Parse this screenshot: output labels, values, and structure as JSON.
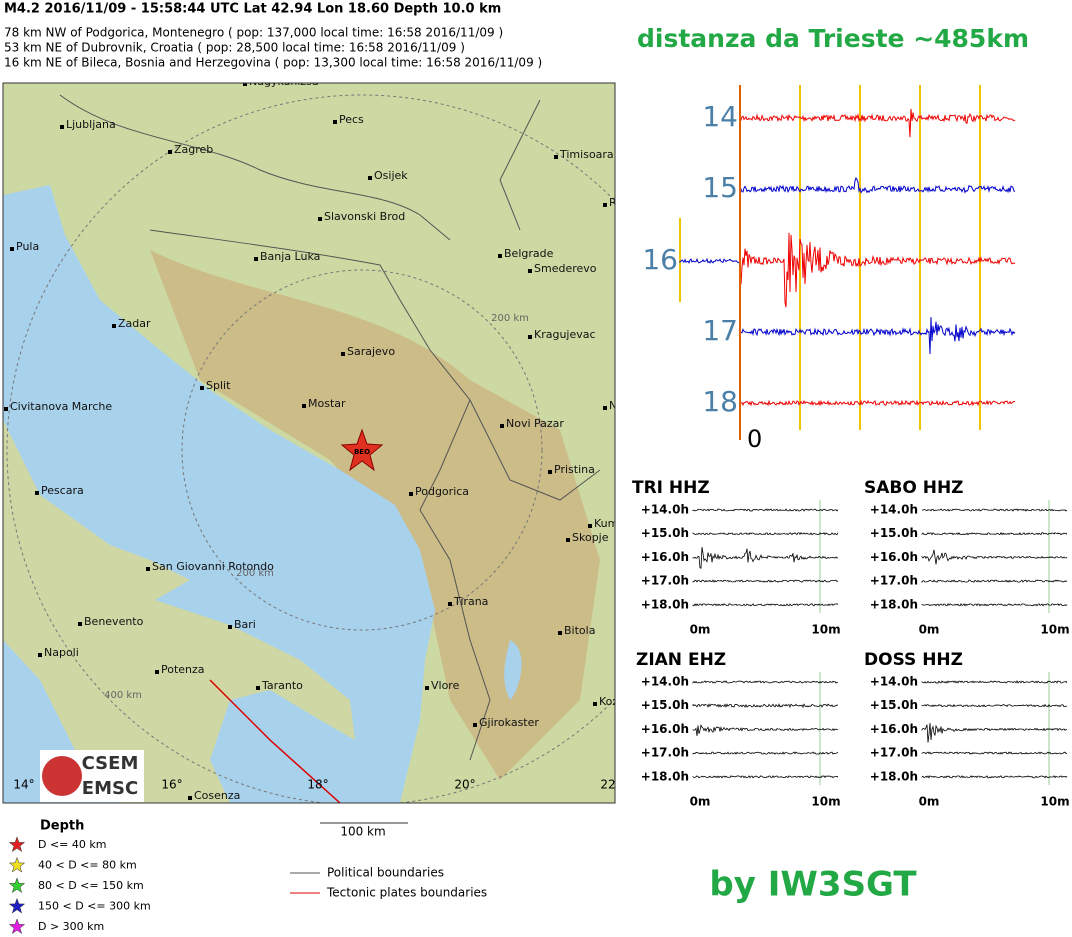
{
  "header": {
    "title": "M4.2  2016/11/09 - 15:58:44 UTC   Lat 42.94  Lon 18.60   Depth  10.0 km",
    "lines": [
      "78 km NW of Podgorica, Montenegro  (  pop: 137,000   local time: 16:58 2016/11/09 )",
      "53 km NE of Dubrovnik, Croatia  (  pop: 28,500   local time: 16:58 2016/11/09 )",
      "16 km NE of Bileca, Bosnia and Herzegovina  (  pop: 13,300   local time: 16:58 2016/11/09 )"
    ]
  },
  "map": {
    "cities": [
      "Nagykanizsa",
      "Ljubljana",
      "Pecs",
      "Zagreb",
      "Timisoara",
      "Osijek",
      "Slavonski Brod",
      "R",
      "Pula",
      "Banja Luka",
      "Belgrade",
      "Smederevo",
      "Zadar",
      "Kragujevac",
      "Sarajevo",
      "Split",
      "Civitanova Marche",
      "Mostar",
      "N",
      "Novi Pazar",
      "Pristina",
      "Pescara",
      "Podgorica",
      "Kum",
      "Skopje",
      "San Giovanni Rotondo",
      "Tirana",
      "Benevento",
      "Bari",
      "Bitola",
      "Napoli",
      "Potenza",
      "Taranto",
      "Vlore",
      "Koz",
      "Gjirokaster",
      "Cosenza"
    ],
    "distance_labels": [
      "200 km",
      "200 km",
      "400 km"
    ],
    "longitude_labels": [
      "14°",
      "16°",
      "18°",
      "20°",
      "22"
    ],
    "epicenter_label": "BEO",
    "logo": [
      "CSEM",
      "EMSC"
    ],
    "scale": "100 km"
  },
  "legend": {
    "depth_title": "Depth",
    "depth_classes": [
      "D <= 40 km",
      "40 < D <= 80 km",
      "80 < D <= 150 km",
      "150 < D <= 300 km",
      "D > 300 km"
    ],
    "boundaries": [
      "Political boundaries",
      "Tectonic plates boundaries"
    ]
  },
  "seismogram": {
    "title": "distanza da Trieste ~485km",
    "hours": [
      "14",
      "15",
      "16",
      "17",
      "18"
    ],
    "origin": "0"
  },
  "panels": [
    {
      "title": "TRI HHZ",
      "rows": [
        "+14.0h",
        "+15.0h",
        "+16.0h",
        "+17.0h",
        "+18.0h"
      ],
      "x_labels": [
        "0m",
        "10m"
      ]
    },
    {
      "title": "SABO HHZ",
      "rows": [
        "+14.0h",
        "+15.0h",
        "+16.0h",
        "+17.0h",
        "+18.0h"
      ],
      "x_labels": [
        "0m",
        "10m"
      ]
    },
    {
      "title": "ZIAN EHZ",
      "rows": [
        "+14.0h",
        "+15.0h",
        "+16.0h",
        "+17.0h",
        "+18.0h"
      ],
      "x_labels": [
        "0m",
        "10m"
      ]
    },
    {
      "title": "DOSS HHZ",
      "rows": [
        "+14.0h",
        "+15.0h",
        "+16.0h",
        "+17.0h",
        "+18.0h"
      ],
      "x_labels": [
        "0m",
        "10m"
      ]
    }
  ],
  "credit": "by IW3SGT"
}
